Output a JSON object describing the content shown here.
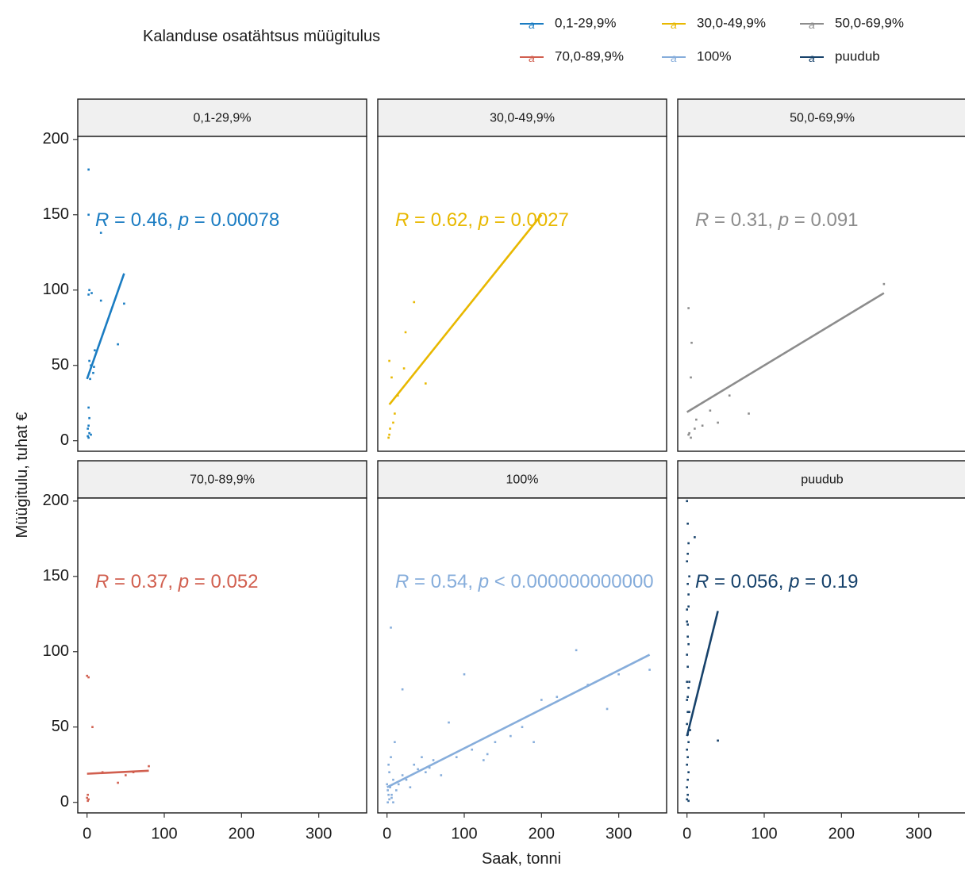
{
  "chart_data": {
    "type": "scatter",
    "legend": {
      "title": "Kalanduse osatähtsus müügitulus",
      "position": "top",
      "glyph": "a"
    },
    "xlabel": "Saak, tonni",
    "ylabel": "Müügitulu, tuhat €",
    "xlim": [
      -12,
      362
    ],
    "ylim": [
      -7,
      202
    ],
    "xticks": [
      0,
      100,
      200,
      300
    ],
    "yticks": [
      0,
      50,
      100,
      150,
      200
    ],
    "panels": [
      {
        "label": "0,1-29,9%",
        "color": "#1a7cc2",
        "stat": {
          "r": "0.46",
          "p": "0.00078",
          "sep": " = "
        },
        "fit": [
          [
            0,
            41
          ],
          [
            48,
            111
          ]
        ],
        "points": [
          [
            2,
            180
          ],
          [
            18,
            138
          ],
          [
            2,
            150
          ],
          [
            3,
            100
          ],
          [
            6,
            98
          ],
          [
            2,
            97
          ],
          [
            18,
            93
          ],
          [
            10,
            60
          ],
          [
            48,
            91
          ],
          [
            40,
            64
          ],
          [
            3,
            53
          ],
          [
            5,
            50
          ],
          [
            8,
            45
          ],
          [
            2,
            22
          ],
          [
            3,
            15
          ],
          [
            2,
            10
          ],
          [
            3,
            5
          ],
          [
            1,
            3
          ],
          [
            2,
            2
          ],
          [
            5,
            4
          ],
          [
            1,
            8
          ],
          [
            4,
            41
          ],
          [
            9,
            49
          ]
        ]
      },
      {
        "label": "30,0-49,9%",
        "color": "#e8b800",
        "stat": {
          "r": "0.62",
          "p": "0.0027",
          "sep": " = "
        },
        "fit": [
          [
            3,
            24
          ],
          [
            200,
            150
          ]
        ],
        "points": [
          [
            3,
            53
          ],
          [
            35,
            92
          ],
          [
            24,
            72
          ],
          [
            22,
            48
          ],
          [
            50,
            38
          ],
          [
            10,
            18
          ],
          [
            8,
            12
          ],
          [
            4,
            8
          ],
          [
            3,
            4
          ],
          [
            2,
            2
          ],
          [
            6,
            42
          ],
          [
            14,
            30
          ]
        ]
      },
      {
        "label": "50,0-69,9%",
        "color": "#8c8c8c",
        "stat": {
          "r": "0.31",
          "p": "0.091",
          "sep": " = "
        },
        "fit": [
          [
            0,
            19
          ],
          [
            255,
            98
          ]
        ],
        "points": [
          [
            2,
            88
          ],
          [
            6,
            65
          ],
          [
            5,
            42
          ],
          [
            30,
            20
          ],
          [
            40,
            12
          ],
          [
            20,
            10
          ],
          [
            10,
            8
          ],
          [
            2,
            4
          ],
          [
            5,
            2
          ],
          [
            3,
            5
          ],
          [
            12,
            14
          ],
          [
            55,
            30
          ],
          [
            255,
            104
          ],
          [
            80,
            18
          ]
        ]
      },
      {
        "label": "70,0-89,9%",
        "color": "#d15f4f",
        "stat": {
          "r": "0.37",
          "p": "0.052",
          "sep": " = "
        },
        "fit": [
          [
            0,
            19
          ],
          [
            80,
            21
          ]
        ],
        "points": [
          [
            0,
            84
          ],
          [
            2,
            83
          ],
          [
            7,
            50
          ],
          [
            40,
            13
          ],
          [
            80,
            24
          ],
          [
            50,
            18
          ],
          [
            1,
            5
          ],
          [
            2,
            2
          ],
          [
            0,
            3
          ],
          [
            1,
            1
          ],
          [
            20,
            20
          ],
          [
            60,
            20
          ]
        ]
      },
      {
        "label": "100%",
        "color": "#86addb",
        "stat": {
          "r": "0.54",
          "p": "0.000000000000",
          "sep": " < "
        },
        "fit": [
          [
            0,
            10
          ],
          [
            340,
            98
          ]
        ],
        "points": [
          [
            5,
            116
          ],
          [
            20,
            75
          ],
          [
            100,
            85
          ],
          [
            80,
            53
          ],
          [
            245,
            101
          ],
          [
            200,
            68
          ],
          [
            190,
            40
          ],
          [
            285,
            62
          ],
          [
            340,
            88
          ],
          [
            140,
            40
          ],
          [
            125,
            28
          ],
          [
            10,
            40
          ],
          [
            5,
            30
          ],
          [
            2,
            25
          ],
          [
            3,
            20
          ],
          [
            8,
            15
          ],
          [
            15,
            12
          ],
          [
            25,
            15
          ],
          [
            40,
            22
          ],
          [
            60,
            28
          ],
          [
            70,
            18
          ],
          [
            45,
            30
          ],
          [
            90,
            30
          ],
          [
            110,
            35
          ],
          [
            130,
            32
          ],
          [
            160,
            44
          ],
          [
            175,
            50
          ],
          [
            220,
            70
          ],
          [
            260,
            78
          ],
          [
            300,
            85
          ],
          [
            2,
            5
          ],
          [
            3,
            2
          ],
          [
            1,
            8
          ],
          [
            6,
            3
          ],
          [
            4,
            10
          ],
          [
            12,
            8
          ],
          [
            30,
            10
          ],
          [
            50,
            20
          ],
          [
            55,
            23
          ],
          [
            35,
            25
          ],
          [
            20,
            18
          ],
          [
            0,
            12
          ],
          [
            1,
            0
          ],
          [
            8,
            0
          ],
          [
            6,
            5
          ]
        ]
      },
      {
        "label": "puudub",
        "color": "#17426b",
        "stat": {
          "r": "0.056",
          "p": "0.19",
          "sep": " = "
        },
        "fit": [
          [
            0,
            44
          ],
          [
            40,
            127
          ]
        ],
        "points": [
          [
            0,
            200
          ],
          [
            1,
            185
          ],
          [
            2,
            172
          ],
          [
            10,
            176
          ],
          [
            0,
            160
          ],
          [
            1,
            145
          ],
          [
            3,
            150
          ],
          [
            2,
            138
          ],
          [
            0,
            128
          ],
          [
            1,
            118
          ],
          [
            2,
            105
          ],
          [
            0,
            98
          ],
          [
            1,
            90
          ],
          [
            3,
            80
          ],
          [
            2,
            76
          ],
          [
            0,
            68
          ],
          [
            1,
            60
          ],
          [
            0,
            52
          ],
          [
            1,
            45
          ],
          [
            2,
            40
          ],
          [
            0,
            35
          ],
          [
            1,
            30
          ],
          [
            0,
            25
          ],
          [
            2,
            20
          ],
          [
            1,
            15
          ],
          [
            0,
            10
          ],
          [
            1,
            5
          ],
          [
            0,
            2
          ],
          [
            2,
            1
          ],
          [
            40,
            41
          ],
          [
            3,
            60
          ],
          [
            4,
            48
          ],
          [
            1,
            110
          ],
          [
            0,
            80
          ],
          [
            1,
            70
          ],
          [
            0,
            120
          ],
          [
            2,
            130
          ],
          [
            1,
            165
          ]
        ]
      }
    ]
  }
}
